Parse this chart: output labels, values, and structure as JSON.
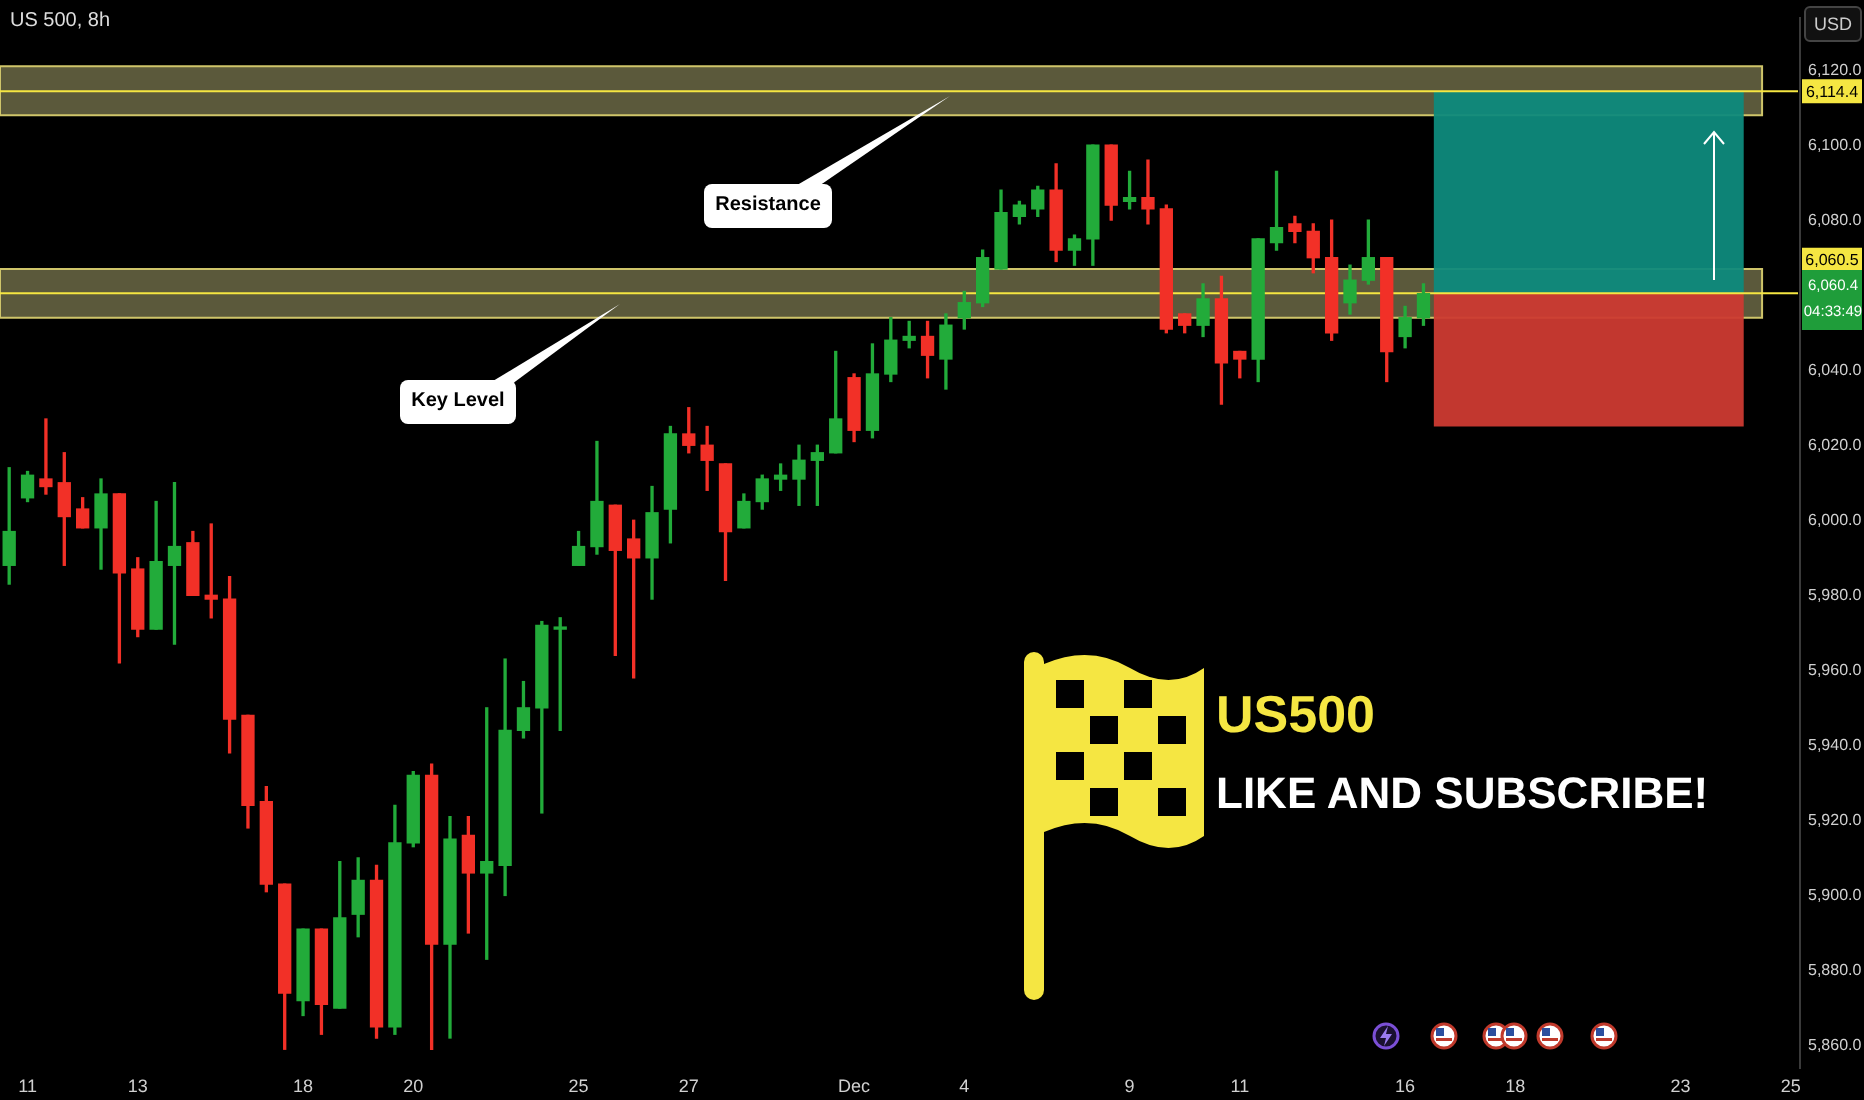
{
  "chart_data": {
    "type": "candlestick",
    "title": "US 500, 8h",
    "categories": [
      null,
      "11",
      null,
      null,
      null,
      null,
      null,
      "13",
      null,
      null,
      null,
      null,
      null,
      null,
      null,
      null,
      "18",
      null,
      null,
      null,
      null,
      null,
      "20",
      null,
      null,
      null,
      null,
      null,
      null,
      null,
      null,
      "25",
      null,
      null,
      null,
      null,
      null,
      "27",
      null,
      null,
      null,
      null,
      null,
      null,
      null,
      null,
      "Dec",
      null,
      null,
      null,
      null,
      null,
      "4",
      null,
      null,
      null,
      null,
      null,
      null,
      null,
      null,
      "9",
      null,
      null,
      null,
      null,
      null,
      "11",
      null,
      null,
      null,
      null,
      null,
      null,
      null,
      null,
      "16",
      null,
      null,
      null,
      null,
      null,
      "18",
      null,
      null,
      null,
      null,
      null,
      null,
      null,
      null,
      "23",
      null,
      null,
      null,
      null,
      null,
      "25"
    ],
    "ohlc": [
      [
        5988,
        6014,
        5983,
        5997
      ],
      [
        6006,
        6013,
        6005,
        6012
      ],
      [
        6011,
        6027,
        6007,
        6009
      ],
      [
        6010,
        6018,
        5988,
        6001
      ],
      [
        6003,
        6006,
        5998,
        5998
      ],
      [
        5998,
        6011,
        5987,
        6007
      ],
      [
        6007,
        6007,
        5962,
        5986
      ],
      [
        5987,
        5990,
        5969,
        5971
      ],
      [
        5971,
        6005,
        5971,
        5989
      ],
      [
        5988,
        6010,
        5967,
        5993
      ],
      [
        5994,
        5997,
        5980,
        5980
      ],
      [
        5980,
        5999,
        5974,
        5979
      ],
      [
        5979,
        5985,
        5938,
        5947
      ],
      [
        5948,
        5948,
        5918,
        5924
      ],
      [
        5925,
        5929,
        5901,
        5903
      ],
      [
        5903,
        5903,
        5859,
        5874
      ],
      [
        5872,
        5891,
        5868,
        5891
      ],
      [
        5891,
        5891,
        5863,
        5871
      ],
      [
        5870,
        5909,
        5870,
        5894
      ],
      [
        5895,
        5910,
        5889,
        5904
      ],
      [
        5904,
        5908,
        5862,
        5865
      ],
      [
        5865,
        5924,
        5863,
        5914
      ],
      [
        5914,
        5933,
        5913,
        5932
      ],
      [
        5932,
        5935,
        5859,
        5887
      ],
      [
        5887,
        5921,
        5862,
        5915
      ],
      [
        5916,
        5921,
        5890,
        5906
      ],
      [
        5906,
        5950,
        5883,
        5909
      ],
      [
        5908,
        5963,
        5900,
        5944
      ],
      [
        5944,
        5957,
        5942,
        5950
      ],
      [
        5950,
        5973,
        5922,
        5972
      ],
      [
        5971,
        5974,
        5944,
        5971
      ],
      [
        5988,
        5997,
        5988,
        5993
      ],
      [
        5993,
        6021,
        5991,
        6005
      ],
      [
        6004,
        6004,
        5964,
        5992
      ],
      [
        5995,
        6000,
        5958,
        5990
      ],
      [
        5990,
        6009,
        5979,
        6002
      ],
      [
        6003,
        6025,
        5994,
        6023
      ],
      [
        6023,
        6030,
        6018,
        6020
      ],
      [
        6020,
        6025,
        6008,
        6016
      ],
      [
        6015,
        6015,
        5984,
        5997
      ],
      [
        5998,
        6007,
        5998,
        6005
      ],
      [
        6005,
        6012,
        6003,
        6011
      ],
      [
        6011,
        6015,
        6008,
        6012
      ],
      [
        6011,
        6020,
        6004,
        6016
      ],
      [
        6016,
        6020,
        6004,
        6018
      ],
      [
        6018,
        6045,
        6018,
        6027
      ],
      [
        6038,
        6039,
        6021,
        6024
      ],
      [
        6024,
        6047,
        6022,
        6039
      ],
      [
        6039,
        6054,
        6037,
        6048
      ],
      [
        6048,
        6053,
        6046,
        6049
      ],
      [
        6049,
        6053,
        6038,
        6044
      ],
      [
        6043,
        6055,
        6035,
        6052
      ],
      [
        6054,
        6061,
        6051,
        6058
      ],
      [
        6058,
        6072,
        6057,
        6070
      ],
      [
        6067,
        6088,
        6067,
        6082
      ],
      [
        6081,
        6085,
        6079,
        6084
      ],
      [
        6083,
        6089,
        6081,
        6088
      ],
      [
        6088,
        6095,
        6069,
        6072
      ],
      [
        6072,
        6076,
        6068,
        6075
      ],
      [
        6075,
        6100,
        6068,
        6100
      ],
      [
        6100,
        6100,
        6080,
        6084
      ],
      [
        6085,
        6093,
        6083,
        6086
      ],
      [
        6086,
        6096,
        6079,
        6083
      ],
      [
        6083,
        6084,
        6050,
        6051
      ],
      [
        6055,
        6055,
        6050,
        6052
      ],
      [
        6052,
        6063,
        6049,
        6059
      ],
      [
        6059,
        6065,
        6031,
        6042
      ],
      [
        6045,
        6045,
        6038,
        6043
      ],
      [
        6043,
        6075,
        6037,
        6075
      ],
      [
        6074,
        6093,
        6072,
        6078
      ],
      [
        6079,
        6081,
        6074,
        6077
      ],
      [
        6077,
        6079,
        6066,
        6070
      ],
      [
        6070,
        6080,
        6048,
        6050
      ],
      [
        6058,
        6068,
        6055,
        6064
      ],
      [
        6064,
        6080,
        6063,
        6070
      ],
      [
        6070,
        6070,
        6037,
        6045
      ],
      [
        6049,
        6057,
        6046,
        6054
      ],
      [
        6054,
        6063,
        6052,
        6060.4
      ],
      null,
      null,
      null,
      null,
      null,
      null,
      null,
      null,
      null,
      null,
      null,
      null,
      null,
      null,
      null,
      null,
      null,
      null,
      null,
      null
    ],
    "ylim": [
      5854,
      6134
    ],
    "yticks": [
      {
        "value": 5860,
        "label": "5,860.0"
      },
      {
        "value": 5880,
        "label": "5,880.0"
      },
      {
        "value": 5900,
        "label": "5,900.0"
      },
      {
        "value": 5920,
        "label": "5,920.0"
      },
      {
        "value": 5940,
        "label": "5,940.0"
      },
      {
        "value": 5960,
        "label": "5,960.0"
      },
      {
        "value": 5980,
        "label": "5,980.0"
      },
      {
        "value": 6000,
        "label": "6,000.0"
      },
      {
        "value": 6020,
        "label": "6,020.0"
      },
      {
        "value": 6040,
        "label": "6,040.0"
      },
      {
        "value": 6080,
        "label": "6,080.0"
      },
      {
        "value": 6100,
        "label": "6,100.0"
      },
      {
        "value": 6120,
        "label": "6,120.0"
      }
    ],
    "ref_lines": [
      {
        "axis": "y",
        "value": 6114.4,
        "label": "6,114.4",
        "color": "#f5e642"
      },
      {
        "axis": "y",
        "value": 6060.5,
        "label": "6,060.5",
        "color": "#f5e642"
      }
    ],
    "bands": [
      {
        "axis": "y",
        "from": 6108,
        "to": 6121,
        "color": "#6b6945"
      },
      {
        "axis": "y",
        "from": 6054,
        "to": 6067,
        "color": "#6b6945"
      },
      {
        "axis": "y",
        "from": 6060.5,
        "to": 6114.4,
        "color": "#0e8a7c"
      },
      {
        "axis": "y",
        "from": 6025,
        "to": 6060.5,
        "color": "#cc3a31"
      }
    ],
    "annotations": [
      "Resistance",
      "Key Level",
      "US500",
      "LIKE AND SUBSCRIBE!",
      "6,060.4",
      "04:33:49",
      "USD"
    ],
    "legend": false
  }
}
